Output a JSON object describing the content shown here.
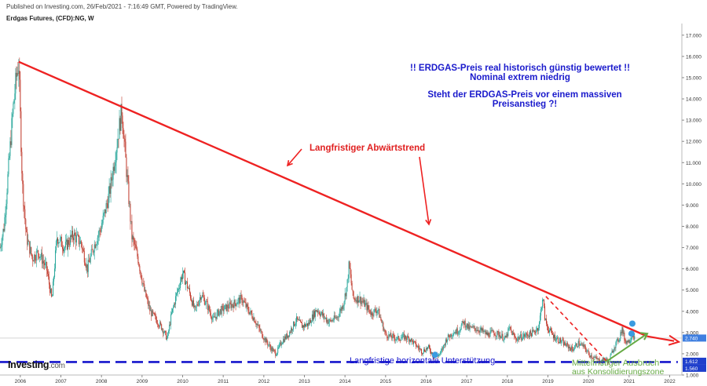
{
  "header": {
    "published": "Published on Investing.com, 26/Feb/2021 - 7:16:49 GMT, Powered by TradingView.",
    "instrument": "Erdgas Futures, (CFD):NG, W"
  },
  "logo": {
    "brand": "Investing",
    "suffix": ".com"
  },
  "colors": {
    "up": "#26a69a",
    "down": "#c0392b",
    "trend": "#ee2222",
    "support": "#1515cc",
    "breakout": "#66aa44",
    "title_text": "#1a1acc",
    "trend_label": "#e02020",
    "price_badge": "#3f7fe0",
    "support_badge": "#1f3fcc",
    "marker": "#3a9be0"
  },
  "chart_data": {
    "type": "candlestick",
    "title": "Erdgas Futures, (CFD):NG, W",
    "xlim": [
      2005.5,
      2022.3
    ],
    "ylim": [
      1.0,
      17.4
    ],
    "y_scale": "linear",
    "y_ticks": [
      "1.000",
      "2.000",
      "3.000",
      "4.000",
      "5.000",
      "6.000",
      "7.000",
      "8.000",
      "9.000",
      "10.000",
      "11.000",
      "12.000",
      "13.000",
      "14.000",
      "15.000",
      "16.000",
      "17.000"
    ],
    "x_ticks": [
      "2006",
      "2007",
      "2008",
      "2009",
      "2010",
      "2011",
      "2012",
      "2013",
      "2014",
      "2015",
      "2016",
      "2017",
      "2018",
      "2019",
      "2020",
      "2021",
      "2022"
    ],
    "price_path": [
      [
        2005.5,
        7.0
      ],
      [
        2005.6,
        8.0
      ],
      [
        2005.7,
        10.5
      ],
      [
        2005.82,
        13.5
      ],
      [
        2005.9,
        15.0
      ],
      [
        2005.96,
        15.7
      ],
      [
        2006.05,
        10.0
      ],
      [
        2006.15,
        7.5
      ],
      [
        2006.3,
        6.5
      ],
      [
        2006.45,
        6.8
      ],
      [
        2006.65,
        6.0
      ],
      [
        2006.78,
        4.5
      ],
      [
        2006.9,
        7.5
      ],
      [
        2007.1,
        7.0
      ],
      [
        2007.3,
        7.6
      ],
      [
        2007.5,
        7.2
      ],
      [
        2007.65,
        6.0
      ],
      [
        2007.8,
        7.0
      ],
      [
        2008.0,
        8.0
      ],
      [
        2008.2,
        9.6
      ],
      [
        2008.35,
        11.5
      ],
      [
        2008.5,
        13.5
      ],
      [
        2008.6,
        11.0
      ],
      [
        2008.75,
        7.5
      ],
      [
        2008.9,
        6.5
      ],
      [
        2009.05,
        5.0
      ],
      [
        2009.2,
        4.0
      ],
      [
        2009.35,
        3.6
      ],
      [
        2009.5,
        3.2
      ],
      [
        2009.62,
        2.7
      ],
      [
        2009.72,
        3.8
      ],
      [
        2009.85,
        4.8
      ],
      [
        2010.0,
        5.8
      ],
      [
        2010.15,
        5.0
      ],
      [
        2010.3,
        4.0
      ],
      [
        2010.45,
        4.8
      ],
      [
        2010.6,
        4.3
      ],
      [
        2010.75,
        3.6
      ],
      [
        2010.9,
        4.0
      ],
      [
        2011.1,
        4.2
      ],
      [
        2011.3,
        4.4
      ],
      [
        2011.45,
        4.6
      ],
      [
        2011.6,
        4.1
      ],
      [
        2011.75,
        3.7
      ],
      [
        2011.9,
        3.1
      ],
      [
        2012.05,
        2.6
      ],
      [
        2012.2,
        2.2
      ],
      [
        2012.3,
        2.0
      ],
      [
        2012.45,
        2.6
      ],
      [
        2012.6,
        2.9
      ],
      [
        2012.8,
        3.6
      ],
      [
        2012.95,
        3.3
      ],
      [
        2013.1,
        3.4
      ],
      [
        2013.3,
        4.1
      ],
      [
        2013.45,
        3.8
      ],
      [
        2013.6,
        3.5
      ],
      [
        2013.8,
        3.7
      ],
      [
        2013.95,
        4.3
      ],
      [
        2014.05,
        5.2
      ],
      [
        2014.1,
        6.2
      ],
      [
        2014.2,
        4.6
      ],
      [
        2014.35,
        4.6
      ],
      [
        2014.5,
        4.3
      ],
      [
        2014.65,
        3.9
      ],
      [
        2014.8,
        4.1
      ],
      [
        2014.9,
        3.5
      ],
      [
        2015.0,
        2.9
      ],
      [
        2015.15,
        2.8
      ],
      [
        2015.3,
        2.7
      ],
      [
        2015.45,
        2.8
      ],
      [
        2015.6,
        2.7
      ],
      [
        2015.75,
        2.4
      ],
      [
        2015.9,
        2.1
      ],
      [
        2016.05,
        2.3
      ],
      [
        2016.2,
        1.85
      ],
      [
        2016.35,
        2.0
      ],
      [
        2016.5,
        2.7
      ],
      [
        2016.65,
        3.0
      ],
      [
        2016.8,
        3.1
      ],
      [
        2016.92,
        3.5
      ],
      [
        2017.05,
        3.2
      ],
      [
        2017.2,
        3.2
      ],
      [
        2017.35,
        3.1
      ],
      [
        2017.5,
        2.9
      ],
      [
        2017.65,
        3.0
      ],
      [
        2017.8,
        2.9
      ],
      [
        2017.95,
        2.7
      ],
      [
        2018.05,
        3.2
      ],
      [
        2018.2,
        2.7
      ],
      [
        2018.35,
        2.8
      ],
      [
        2018.5,
        2.9
      ],
      [
        2018.65,
        3.0
      ],
      [
        2018.78,
        3.3
      ],
      [
        2018.87,
        4.7
      ],
      [
        2018.93,
        3.6
      ],
      [
        2019.0,
        3.2
      ],
      [
        2019.15,
        2.8
      ],
      [
        2019.3,
        2.6
      ],
      [
        2019.45,
        2.4
      ],
      [
        2019.6,
        2.2
      ],
      [
        2019.75,
        2.5
      ],
      [
        2019.9,
        2.3
      ],
      [
        2020.0,
        2.0
      ],
      [
        2020.15,
        1.8
      ],
      [
        2020.3,
        1.65
      ],
      [
        2020.4,
        1.75
      ],
      [
        2020.5,
        1.65
      ],
      [
        2020.62,
        2.3
      ],
      [
        2020.75,
        2.7
      ],
      [
        2020.82,
        3.2
      ],
      [
        2020.9,
        2.6
      ],
      [
        2021.0,
        2.6
      ],
      [
        2021.08,
        2.95
      ],
      [
        2021.12,
        2.8
      ],
      [
        2021.15,
        2.74
      ]
    ],
    "last_price": "2.740",
    "support_levels": [
      "1.612",
      "1.560"
    ],
    "support_value": 1.612,
    "lines": [
      {
        "name": "long-term-downtrend",
        "from": [
          2005.96,
          15.75
        ],
        "to": [
          2021.45,
          2.82
        ]
      },
      {
        "name": "horizontal-support",
        "from": [
          2005.5,
          1.612
        ],
        "to": [
          2022.2,
          1.612
        ]
      },
      {
        "name": "mid-term-down-dashed",
        "from": [
          2018.95,
          4.7
        ],
        "to": [
          2020.45,
          1.65
        ]
      },
      {
        "name": "mid-term-breakout-arrow",
        "from": [
          2020.45,
          1.65
        ],
        "to": [
          2021.45,
          2.95
        ]
      }
    ],
    "grid": false,
    "annotations": {
      "headline_1": "!! ERDGAS-Preis real historisch günstig bewertet !!",
      "headline_2": "Nominal extrem niedrig",
      "headline_3": "Steht der ERDGAS-Preis vor einem massiven",
      "headline_4": "Preisanstieg ?!",
      "trend_label": "Langfristiger Abwärtstrend",
      "support_label": "Langfristige horizontale Unterstützung",
      "breakout_label_1": "Mittelfristiger Ausbruch",
      "breakout_label_2": "aus Konsolidierungszone"
    }
  }
}
